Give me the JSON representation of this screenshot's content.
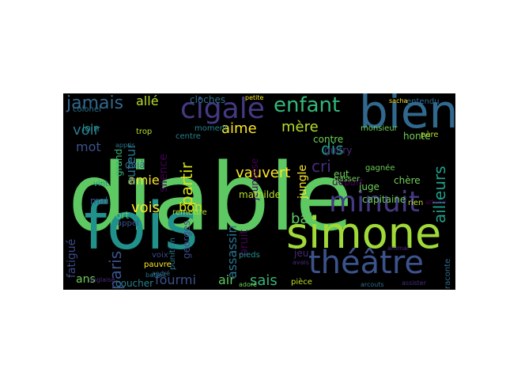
{
  "wordcloud": {
    "background": "#000000",
    "words": [
      {
        "text": "diable",
        "color": "#5ec962"
      },
      {
        "text": "fois",
        "color": "#21918c"
      },
      {
        "text": "bien",
        "color": "#31688e"
      },
      {
        "text": "simone",
        "color": "#a0da39"
      },
      {
        "text": "minuit",
        "color": "#443983"
      },
      {
        "text": "théâtre",
        "color": "#3b528b"
      },
      {
        "text": "cigale",
        "color": "#443983"
      },
      {
        "text": "enfant",
        "color": "#35b779"
      },
      {
        "text": "jamais",
        "color": "#31688e"
      },
      {
        "text": "allé",
        "color": "#b5de2b"
      },
      {
        "text": "cloches",
        "color": "#2c728e"
      },
      {
        "text": "aime",
        "color": "#fde725"
      },
      {
        "text": "mère",
        "color": "#b5de2b"
      },
      {
        "text": "vauvert",
        "color": "#fde725"
      },
      {
        "text": "partir",
        "color": "#d8e219"
      },
      {
        "text": "vois",
        "color": "#fde725"
      },
      {
        "text": "bon",
        "color": "#d8e219"
      },
      {
        "text": "amie",
        "color": "#fde725"
      },
      {
        "text": "voir",
        "color": "#2a788e"
      },
      {
        "text": "mot",
        "color": "#3b528b"
      },
      {
        "text": "auteur",
        "color": "#2a788e"
      },
      {
        "text": "paris",
        "color": "#3b528b"
      },
      {
        "text": "ans",
        "color": "#6ece58"
      },
      {
        "text": "fourmi",
        "color": "#3b528b"
      },
      {
        "text": "air",
        "color": "#5ec962"
      },
      {
        "text": "sais",
        "color": "#35b779"
      },
      {
        "text": "bal",
        "color": "#5ec962"
      },
      {
        "text": "dis",
        "color": "#1fa088"
      },
      {
        "text": "cri",
        "color": "#472d7b"
      },
      {
        "text": "ailleurs",
        "color": "#1f9e89"
      },
      {
        "text": "assassin",
        "color": "#2c728e"
      },
      {
        "text": "bruit",
        "color": "#440154"
      },
      {
        "text": "silence",
        "color": "#440154"
      },
      {
        "text": "jeunesse",
        "color": "#440154"
      },
      {
        "text": "mathilde",
        "color": "#b5de2b"
      },
      {
        "text": "fatigué",
        "color": "#3e4a89"
      },
      {
        "text": "coucher",
        "color": "#26828e"
      },
      {
        "text": "pièce",
        "color": "#c2df23"
      },
      {
        "text": "capitaine",
        "color": "#6ece58"
      },
      {
        "text": "départ",
        "color": "#440154"
      },
      {
        "text": "juge",
        "color": "#6ece58"
      },
      {
        "text": "chère",
        "color": "#6ece58"
      },
      {
        "text": "jungle",
        "color": "#fde725"
      },
      {
        "text": "contre",
        "color": "#6ece58"
      },
      {
        "text": "guitry",
        "color": "#472d7b"
      },
      {
        "text": "gagnée",
        "color": "#6ece58"
      },
      {
        "text": "eut",
        "color": "#6ece58"
      },
      {
        "text": "passer",
        "color": "#6ece58"
      },
      {
        "text": "monsieur",
        "color": "#6ece58"
      },
      {
        "text": "honte",
        "color": "#6ece58"
      },
      {
        "text": "jeu",
        "color": "#482878"
      },
      {
        "text": "raconte",
        "color": "#31688e"
      },
      {
        "text": "assister",
        "color": "#472d7b"
      },
      {
        "text": "entendu",
        "color": "#31688e"
      },
      {
        "text": "sacha",
        "color": "#fde725"
      },
      {
        "text": "petite",
        "color": "#fde725"
      },
      {
        "text": "colonel",
        "color": "#2c728e"
      },
      {
        "text": "loin",
        "color": "#21918c"
      },
      {
        "text": "moment",
        "color": "#26828e"
      },
      {
        "text": "centre",
        "color": "#26828e"
      },
      {
        "text": "déjà",
        "color": "#31688e"
      },
      {
        "text": "trop",
        "color": "#b5de2b"
      },
      {
        "text": "grand",
        "color": "#35b779"
      },
      {
        "text": "vint",
        "color": "#21918c"
      },
      {
        "text": "mal",
        "color": "#3b528b"
      },
      {
        "text": "fort",
        "color": "#5ec962"
      },
      {
        "text": "remettre",
        "color": "#b5de2b"
      },
      {
        "text": "georges",
        "color": "#3e4a89"
      },
      {
        "text": "punition",
        "color": "#2a788e"
      },
      {
        "text": "voix",
        "color": "#3e4a89"
      },
      {
        "text": "pauvre",
        "color": "#fde725"
      },
      {
        "text": "andré",
        "color": "#31688e"
      },
      {
        "text": "appel",
        "color": "#3b528b"
      },
      {
        "text": "pieds",
        "color": "#21918c"
      },
      {
        "text": "rien",
        "color": "#b5de2b"
      },
      {
        "text": "père",
        "color": "#b5de2b"
      },
      {
        "text": "appris",
        "color": "#2c728e"
      },
      {
        "text": "battait",
        "color": "#2c728e"
      },
      {
        "text": "animal",
        "color": "#482878"
      },
      {
        "text": "avais",
        "color": "#482878"
      },
      {
        "text": "arcouts",
        "color": "#2c728e"
      },
      {
        "text": "adore",
        "color": "#6ece58"
      },
      {
        "text": "anglaise",
        "color": "#482878"
      },
      {
        "text": "attend",
        "color": "#440154"
      }
    ]
  }
}
